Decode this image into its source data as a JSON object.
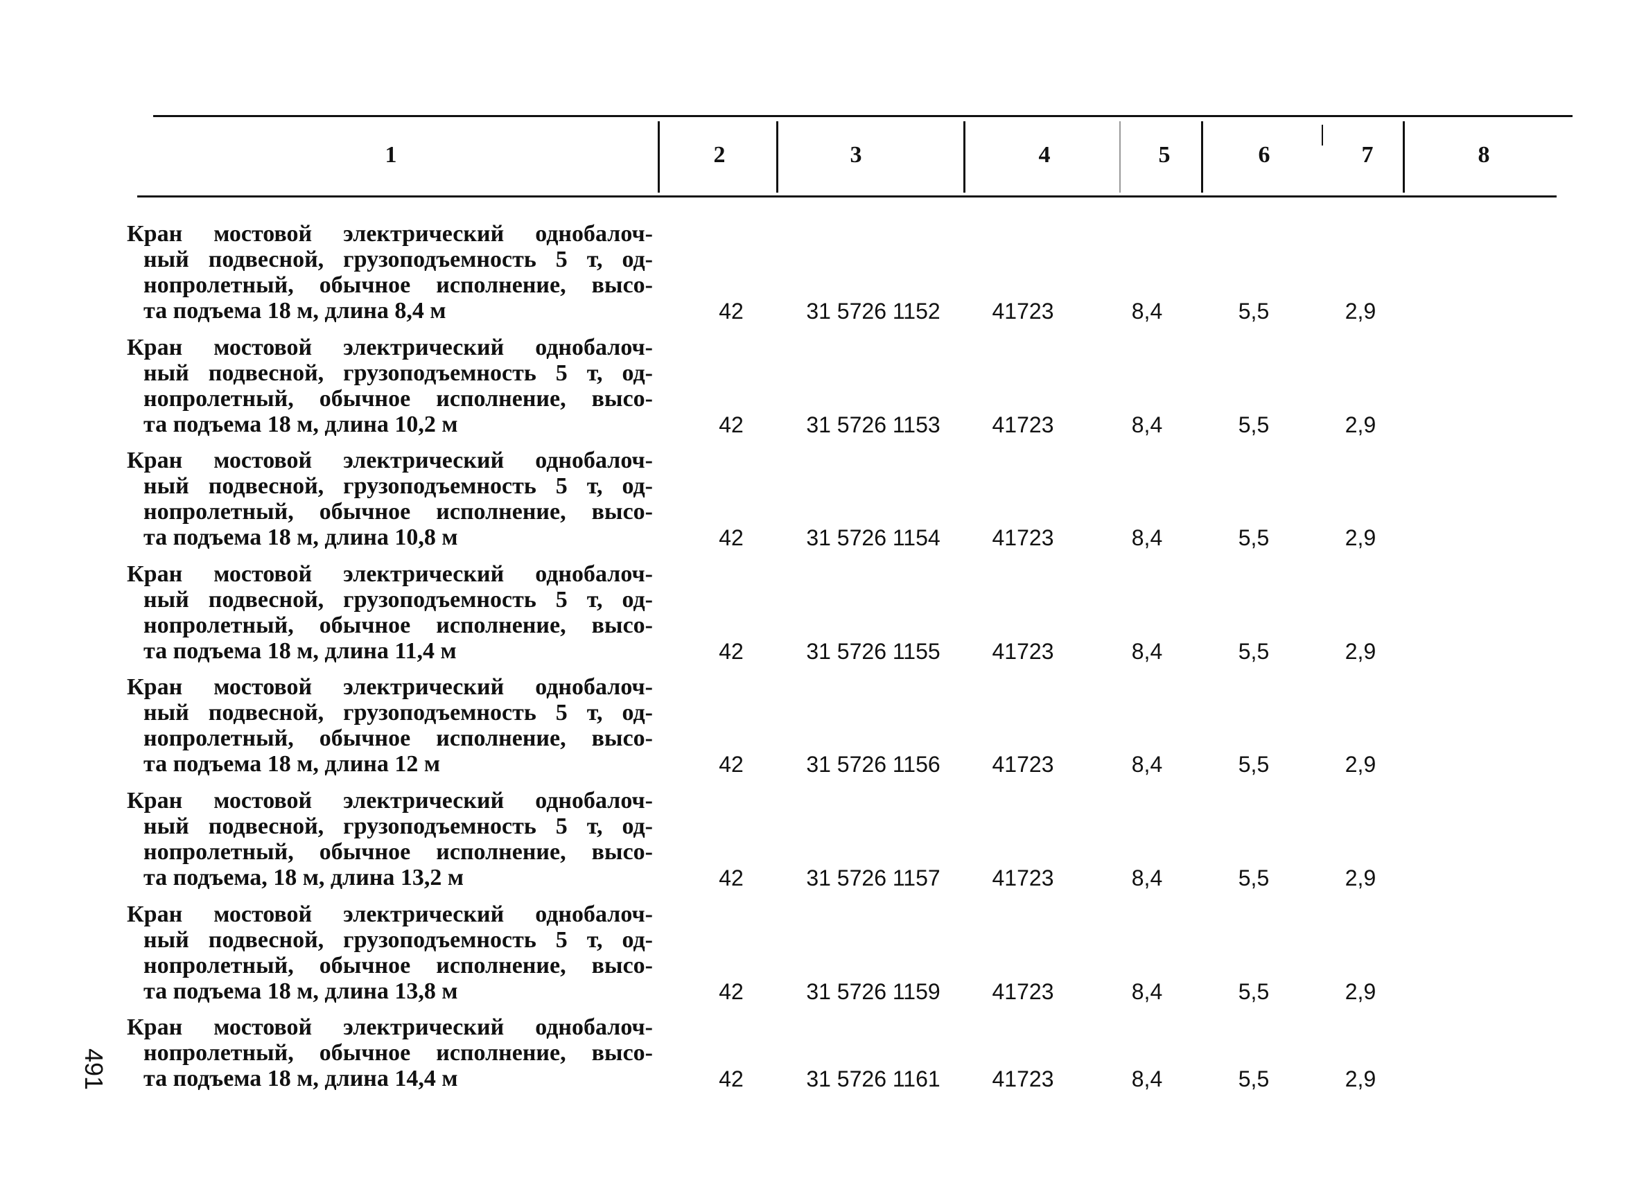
{
  "header": {
    "columns": [
      "1",
      "2",
      "3",
      "4",
      "5",
      "6",
      "7",
      "8"
    ]
  },
  "rows": [
    {
      "description": [
        "Кран мостовой электрический однобалоч-",
        "ный подвесной, грузоподъемность 5 т, од-",
        "нопролетный, обычное исполнение, высо-",
        "та подъема 18 м, длина 8,4 м"
      ],
      "values": [
        "42",
        "31 5726 1152",
        "41723",
        "8,4",
        "5,5",
        "2,9"
      ]
    },
    {
      "description": [
        "Кран мостовой электрический однобалоч-",
        "ный подвесной, грузоподъемность 5 т, од-",
        "нопролетный, обычное исполнение, высо-",
        "та подъема 18 м, длина 10,2 м"
      ],
      "values": [
        "42",
        "31 5726 1153",
        "41723",
        "8,4",
        "5,5",
        "2,9"
      ]
    },
    {
      "description": [
        "Кран мостовой электрический однобалоч-",
        "ный подвесной, грузоподъемность 5 т, од-",
        "нопролетный, обычное исполнение, высо-",
        "та подъема 18 м, длина 10,8 м"
      ],
      "values": [
        "42",
        "31 5726 1154",
        "41723",
        "8,4",
        "5,5",
        "2,9"
      ]
    },
    {
      "description": [
        "Кран мостовой электрический однобалоч-",
        "ный подвесной, грузоподъемность 5 т, од-",
        "нопролетный, обычное исполнение, высо-",
        "та подъема 18 м, длина 11,4 м"
      ],
      "values": [
        "42",
        "31 5726 1155",
        "41723",
        "8,4",
        "5,5",
        "2,9"
      ]
    },
    {
      "description": [
        "Кран мостовой электрический однобалоч-",
        "ный подвесной, грузоподъемность 5 т, од-",
        "нопролетный, обычное исполнение, высо-",
        "та подъема 18 м, длина 12 м"
      ],
      "values": [
        "42",
        "31 5726 1156",
        "41723",
        "8,4",
        "5,5",
        "2,9"
      ]
    },
    {
      "description": [
        "Кран мостовой электрический однобалоч-",
        "ный подвесной, грузоподъемность 5 т, од-",
        "нопролетный, обычное исполнение, высо-",
        "та подъема, 18 м, длина 13,2 м"
      ],
      "values": [
        "42",
        "31 5726 1157",
        "41723",
        "8,4",
        "5,5",
        "2,9"
      ]
    },
    {
      "description": [
        "Кран мостовой электрический однобалоч-",
        "ный подвесной, грузоподъемность 5 т, од-",
        "нопролетный, обычное исполнение, высо-",
        "та подъема 18 м, длина 13,8 м"
      ],
      "values": [
        "42",
        "31 5726 1159",
        "41723",
        "8,4",
        "5,5",
        "2,9"
      ]
    },
    {
      "description": [
        "Кран мостовой электрический однобалоч-",
        "нопролетный, обычное исполнение, высо-",
        "та подъема 18 м, длина 14,4 м"
      ],
      "values": [
        "42",
        "31 5726 1161",
        "41723",
        "8,4",
        "5,5",
        "2,9"
      ]
    }
  ],
  "page_number": "491"
}
